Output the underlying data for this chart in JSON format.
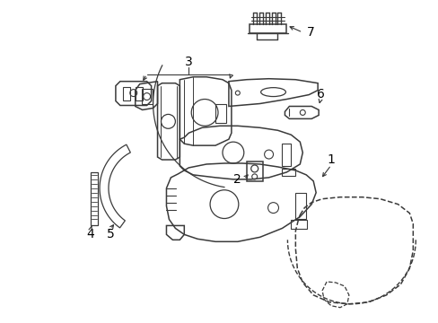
{
  "background_color": "#ffffff",
  "line_color": "#3a3a3a",
  "label_color": "#000000",
  "fig_width": 4.89,
  "fig_height": 3.6,
  "dpi": 100
}
